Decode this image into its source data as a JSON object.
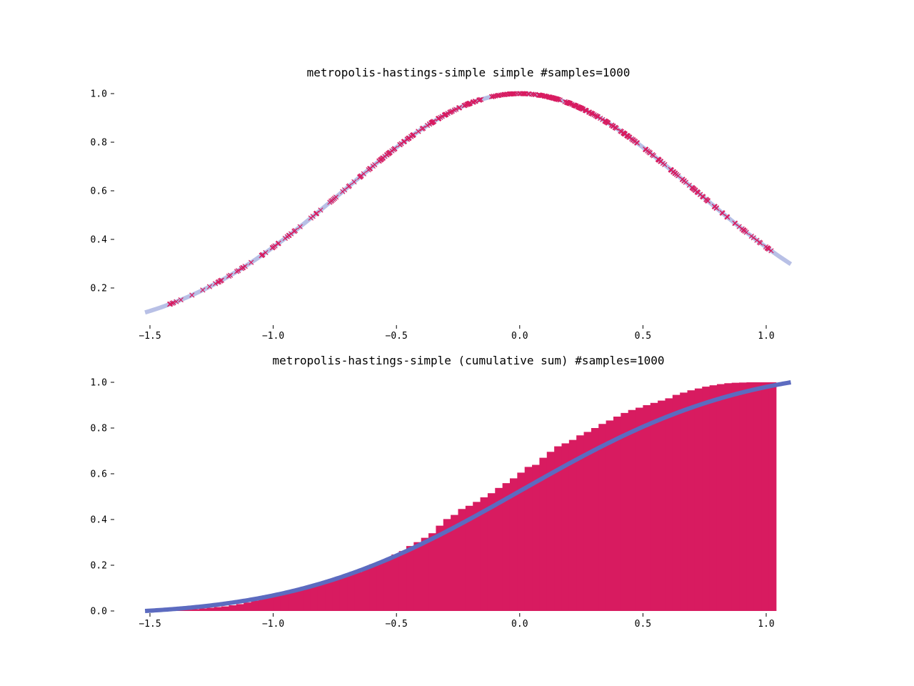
{
  "colors": {
    "marker": "#d81b60",
    "histogram": "#d81b60",
    "density_line": "#b8c0e6",
    "cdf_line": "#5c6bc0"
  },
  "chart_data": [
    {
      "type": "scatter",
      "title": "metropolis-hastings-simple simple #samples=1000",
      "xlabel": "",
      "ylabel": "",
      "xlim": [
        -1.55,
        1.12
      ],
      "ylim": [
        0.05,
        1.02
      ],
      "xticks": [
        -1.5,
        -1.0,
        -0.5,
        0.0,
        0.5,
        1.0
      ],
      "xtick_labels": [
        "−1.5",
        "−1.0",
        "−0.5",
        "0.0",
        "0.5",
        "1.0"
      ],
      "yticks": [
        0.2,
        0.4,
        0.6,
        0.8,
        1.0
      ],
      "ytick_labels": [
        "0.2",
        "0.4",
        "0.6",
        "0.8",
        "1.0"
      ],
      "grid": false,
      "line": {
        "name": "",
        "function": "exp(-x^2)",
        "x_range": [
          -1.52,
          1.1
        ]
      },
      "samples": {
        "marker": "x",
        "x_range": [
          -1.42,
          1.02
        ],
        "count": 1000,
        "points_on_curve": true
      }
    },
    {
      "type": "bar",
      "title": "metropolis-hastings-simple (cumulative sum) #samples=1000",
      "xlabel": "",
      "ylabel": "",
      "xlim": [
        -1.55,
        1.12
      ],
      "ylim": [
        0.0,
        1.02
      ],
      "xticks": [
        -1.5,
        -1.0,
        -0.5,
        0.0,
        0.5,
        1.0
      ],
      "xtick_labels": [
        "−1.5",
        "−1.0",
        "−0.5",
        "0.0",
        "0.5",
        "1.0"
      ],
      "yticks": [
        0.0,
        0.2,
        0.4,
        0.6,
        0.8,
        1.0
      ],
      "ytick_labels": [
        "0.0",
        "0.2",
        "0.4",
        "0.6",
        "0.8",
        "1.0"
      ],
      "grid": false,
      "histogram": {
        "bin_start": -1.42,
        "bin_width": 0.03,
        "values": [
          0.002,
          0.004,
          0.006,
          0.008,
          0.011,
          0.014,
          0.017,
          0.02,
          0.025,
          0.03,
          0.037,
          0.045,
          0.055,
          0.066,
          0.074,
          0.083,
          0.09,
          0.095,
          0.1,
          0.11,
          0.119,
          0.128,
          0.138,
          0.15,
          0.16,
          0.17,
          0.184,
          0.204,
          0.215,
          0.228,
          0.247,
          0.262,
          0.284,
          0.301,
          0.32,
          0.34,
          0.373,
          0.402,
          0.42,
          0.446,
          0.46,
          0.477,
          0.497,
          0.515,
          0.538,
          0.559,
          0.58,
          0.605,
          0.63,
          0.639,
          0.67,
          0.696,
          0.72,
          0.733,
          0.748,
          0.768,
          0.783,
          0.8,
          0.818,
          0.833,
          0.85,
          0.866,
          0.879,
          0.889,
          0.9,
          0.91,
          0.92,
          0.93,
          0.945,
          0.955,
          0.965,
          0.973,
          0.981,
          0.987,
          0.992,
          0.996,
          0.998,
          0.999,
          1.0,
          1.0,
          1.0,
          1.0
        ]
      },
      "line": {
        "name": "",
        "function": "normalized cumulative of exp(-x^2)",
        "x_range": [
          -1.52,
          1.1
        ]
      }
    }
  ]
}
